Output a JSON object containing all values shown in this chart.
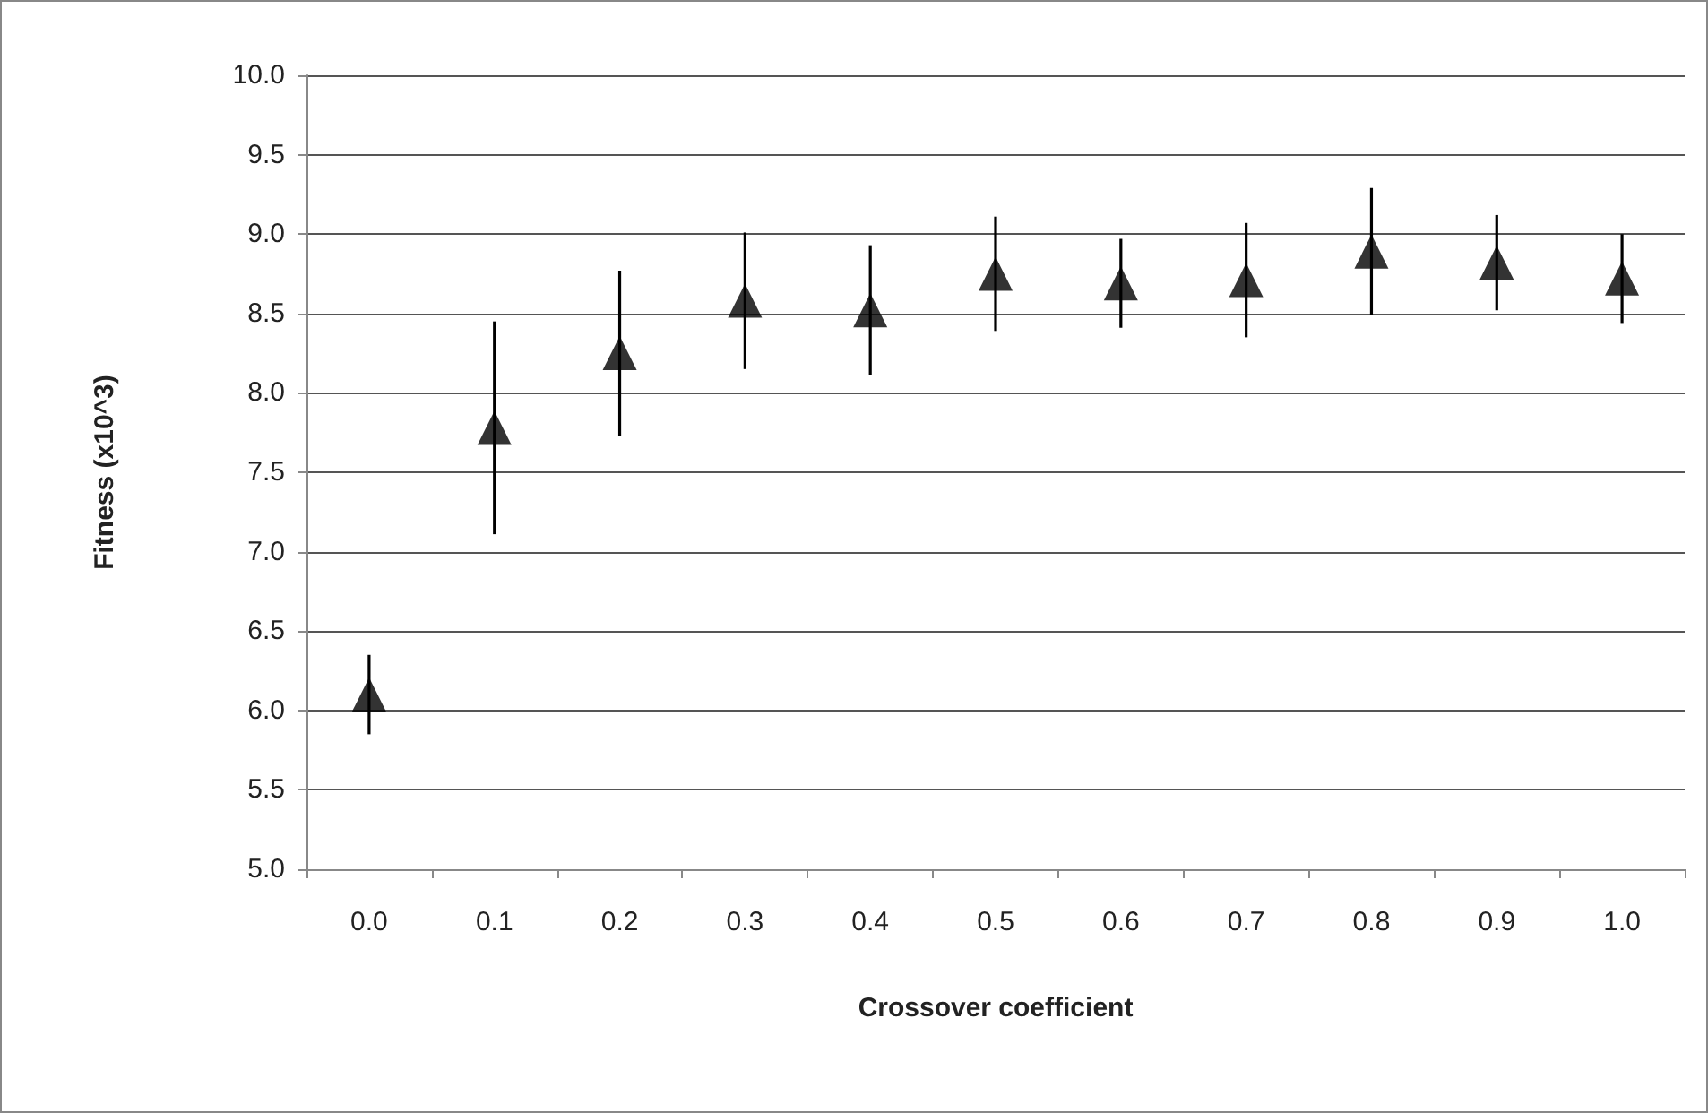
{
  "chart_data": {
    "type": "scatter",
    "xlabel": "Crossover coefficient",
    "ylabel": "Fitness (x10^3)",
    "categories": [
      "0.0",
      "0.1",
      "0.2",
      "0.3",
      "0.4",
      "0.5",
      "0.6",
      "0.7",
      "0.8",
      "0.9",
      "1.0"
    ],
    "series": [
      {
        "color": "#000000",
        "values": [
          6.1,
          7.78,
          8.25,
          8.58,
          8.52,
          8.75,
          8.69,
          8.71,
          8.89,
          8.82,
          8.72
        ],
        "errors": [
          0.25,
          0.67,
          0.52,
          0.43,
          0.41,
          0.36,
          0.28,
          0.36,
          0.4,
          0.3,
          0.28
        ]
      }
    ],
    "ylim": [
      5.0,
      10.0
    ],
    "yticks": [
      {
        "value": 5,
        "label": "5.0"
      },
      {
        "value": 5.5,
        "label": "5.5"
      },
      {
        "value": 6,
        "label": "6.0"
      },
      {
        "value": 6.5,
        "label": "6.5"
      },
      {
        "value": 7,
        "label": "7.0"
      },
      {
        "value": 7.5,
        "label": "7.5"
      },
      {
        "value": 8,
        "label": "8.0"
      },
      {
        "value": 8.5,
        "label": "8.5"
      },
      {
        "value": 9,
        "label": "9.0"
      },
      {
        "value": 9.5,
        "label": "9.5"
      },
      {
        "value": 10,
        "label": "10.0"
      }
    ],
    "grid": "y",
    "marker": "triangle"
  }
}
